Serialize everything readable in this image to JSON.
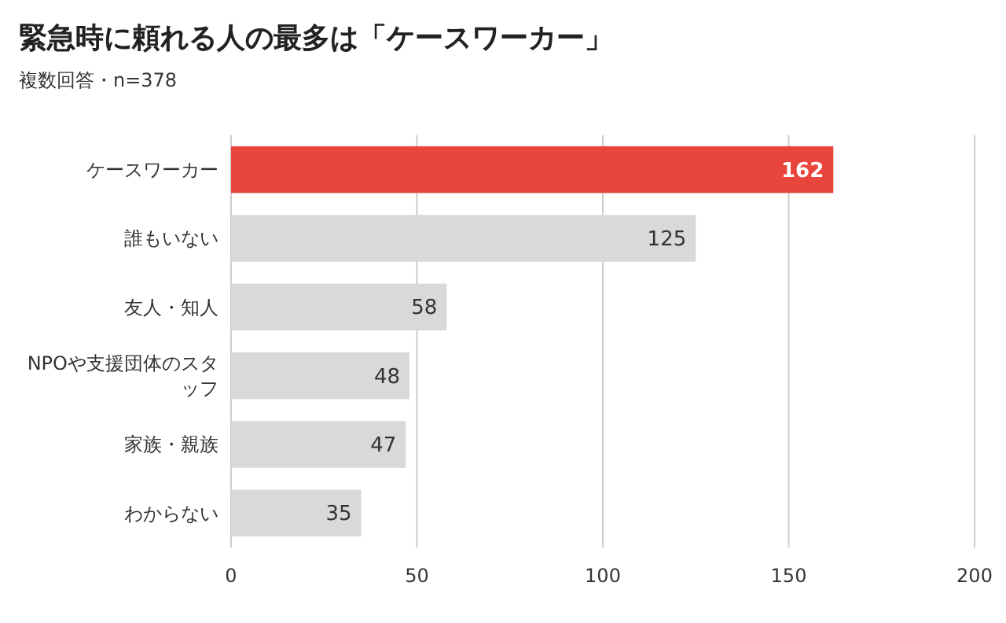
{
  "chart_data": {
    "type": "bar",
    "orientation": "horizontal",
    "title": "緊急時に頼れる人の最多は「ケースワーカー」",
    "subtitle": "複数回答・n=378",
    "categories": [
      "ケースワーカー",
      "誰もいない",
      "友人・知人",
      "NPOや支援団体のスタッフ",
      "家族・親族",
      "わからない"
    ],
    "values": [
      162,
      125,
      58,
      48,
      47,
      35
    ],
    "colors": [
      "#e8453c",
      "#d9d9d9",
      "#d9d9d9",
      "#d9d9d9",
      "#d9d9d9",
      "#d9d9d9"
    ],
    "xlim": [
      0,
      200
    ],
    "xticks": [
      0,
      50,
      100,
      150,
      200
    ],
    "grid": "x",
    "data_labels": true
  }
}
